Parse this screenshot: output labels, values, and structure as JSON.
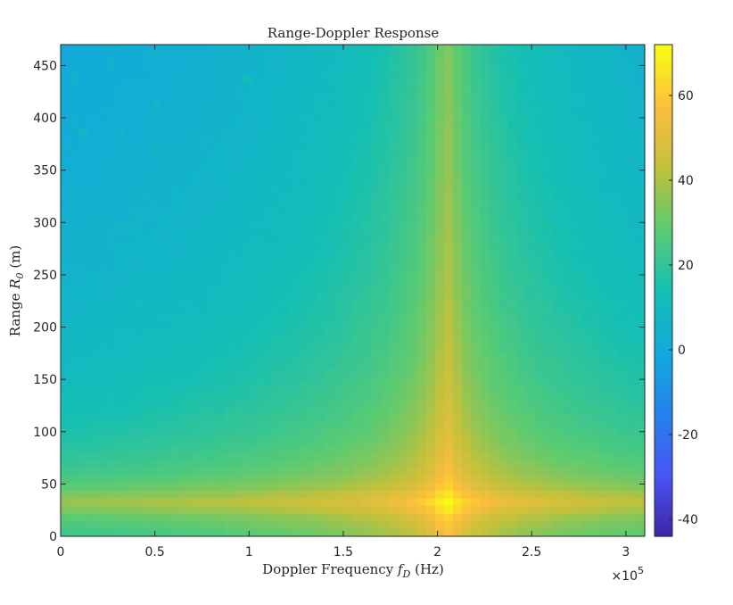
{
  "chart_data": {
    "type": "heatmap",
    "title": "Range-Doppler Response",
    "xlabel": "Doppler Frequency f_D (Hz)",
    "xlabel_parts": {
      "pre": "Doppler Frequency ",
      "var": "f",
      "sub": "D",
      "post": " (Hz)"
    },
    "ylabel": "Range R_0 (m)",
    "ylabel_parts": {
      "pre": "Range ",
      "var": "R",
      "sub": "0",
      "post": " (m)"
    },
    "xlim": [
      0,
      310000
    ],
    "ylim": [
      0,
      470
    ],
    "x_exponent_label": "×10",
    "x_exponent_power": "5",
    "xticks": [
      {
        "value": 0,
        "label": "0"
      },
      {
        "value": 50000,
        "label": "0.5"
      },
      {
        "value": 100000,
        "label": "1"
      },
      {
        "value": 150000,
        "label": "1.5"
      },
      {
        "value": 200000,
        "label": "2"
      },
      {
        "value": 250000,
        "label": "2.5"
      },
      {
        "value": 300000,
        "label": "3"
      }
    ],
    "yticks": [
      {
        "value": 0,
        "label": "0"
      },
      {
        "value": 50,
        "label": "50"
      },
      {
        "value": 100,
        "label": "100"
      },
      {
        "value": 150,
        "label": "150"
      },
      {
        "value": 200,
        "label": "200"
      },
      {
        "value": 250,
        "label": "250"
      },
      {
        "value": 300,
        "label": "300"
      },
      {
        "value": 350,
        "label": "350"
      },
      {
        "value": 400,
        "label": "400"
      },
      {
        "value": 450,
        "label": "450"
      }
    ],
    "colorbar": {
      "range": [
        -44,
        72
      ],
      "colormap": "parula",
      "ticks": [
        {
          "value": 60,
          "label": "60"
        },
        {
          "value": 40,
          "label": "40"
        },
        {
          "value": 20,
          "label": "20"
        },
        {
          "value": 0,
          "label": "0"
        },
        {
          "value": -20,
          "label": "-20"
        },
        {
          "value": -40,
          "label": "-40"
        }
      ]
    },
    "grid": {
      "doppler_bins": 64,
      "range_bins": 64
    },
    "target": {
      "doppler_hz": 205000,
      "range_m": 33,
      "peak_db": 72
    },
    "noise_floor_db": -6
  }
}
